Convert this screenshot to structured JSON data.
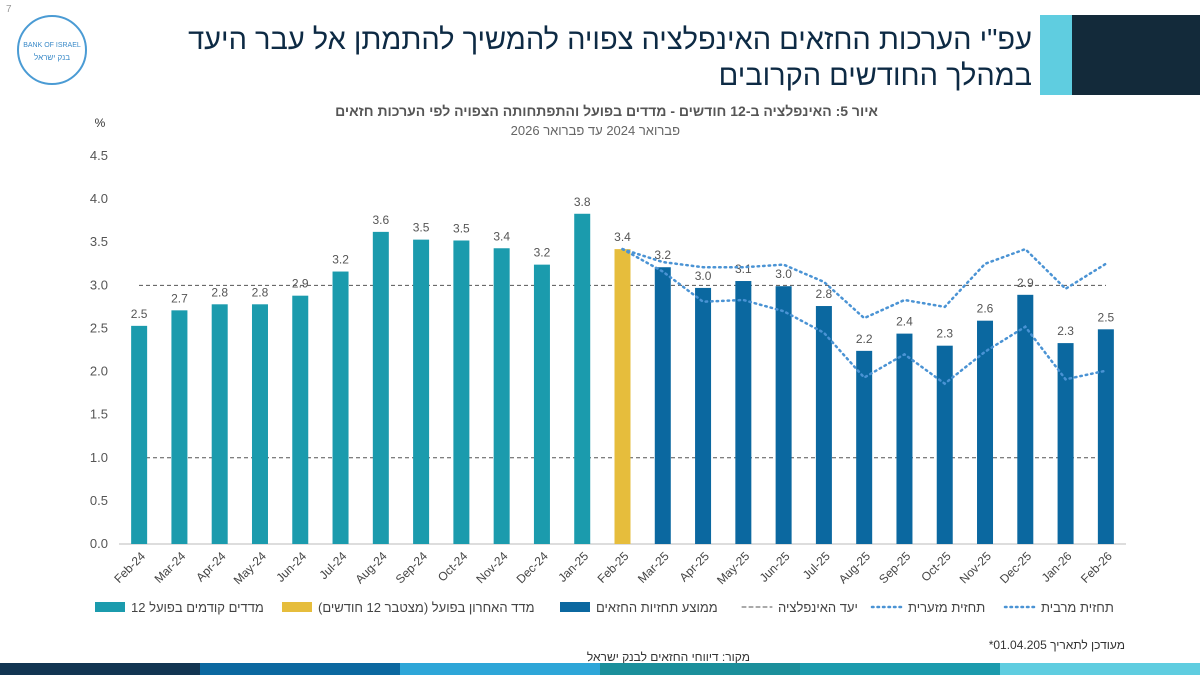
{
  "page_number": "7",
  "logo": {
    "en": "BANK OF ISRAEL",
    "he": "בנק ישראל"
  },
  "slide_title": "עפ\"י הערכות החזאים האינפלציה צפויה להמשיך להתמתן אל עבר היעד במהלך החודשים הקרובים",
  "chart_data": {
    "type": "bar",
    "title": "איור 5: האינפלציה ב-12 חודשים - מדדים בפועל והתפתחותה הצפויה לפי הערכות חזאים",
    "subtitle": "פברואר 2024 עד פברואר 2026",
    "y_label": "%",
    "categories": [
      "Feb-24",
      "Mar-24",
      "Apr-24",
      "May-24",
      "Jun-24",
      "Jul-24",
      "Aug-24",
      "Sep-24",
      "Oct-24",
      "Nov-24",
      "Dec-24",
      "Jan-25",
      "Feb-25",
      "Mar-25",
      "Apr-25",
      "May-25",
      "Jun-25",
      "Jul-25",
      "Aug-25",
      "Sep-25",
      "Oct-25",
      "Nov-25",
      "Dec-25",
      "Jan-26",
      "Feb-26"
    ],
    "ylim": [
      0,
      4.5
    ],
    "yticks": [
      {
        "value": 0,
        "label": "0.0"
      },
      0.5,
      {
        "value": 1,
        "label": "1.0"
      },
      1.5,
      {
        "value": 2,
        "label": "2.0"
      },
      2.5,
      {
        "value": 3,
        "label": "3.0"
      },
      3.5,
      {
        "value": 4,
        "label": "4.0"
      },
      4.5
    ],
    "series": [
      {
        "name": "12 מדדים קודמים בפועל",
        "type": "bar",
        "color": "#1b9bad",
        "values": [
          2.53,
          2.71,
          2.78,
          2.78,
          2.88,
          3.16,
          3.62,
          3.53,
          3.52,
          3.43,
          3.24,
          3.83,
          null,
          null,
          null,
          null,
          null,
          null,
          null,
          null,
          null,
          null,
          null,
          null,
          null
        ],
        "value_labels": [
          "2.5",
          "2.7",
          "2.8",
          "2.8",
          "2.9",
          "3.2",
          "3.6",
          "3.5",
          "3.5",
          "3.4",
          "3.2",
          "3.8",
          null,
          null,
          null,
          null,
          null,
          null,
          null,
          null,
          null,
          null,
          null,
          null,
          null
        ]
      },
      {
        "name": "מדד האחרון בפועל (מצטבר 12 חודשים)",
        "type": "bar",
        "color": "#e6bd3c",
        "values": [
          null,
          null,
          null,
          null,
          null,
          null,
          null,
          null,
          null,
          null,
          null,
          null,
          3.42,
          null,
          null,
          null,
          null,
          null,
          null,
          null,
          null,
          null,
          null,
          null,
          null
        ],
        "value_labels": [
          null,
          null,
          null,
          null,
          null,
          null,
          null,
          null,
          null,
          null,
          null,
          null,
          "3.4",
          null,
          null,
          null,
          null,
          null,
          null,
          null,
          null,
          null,
          null,
          null,
          null
        ]
      },
      {
        "name": "ממוצע תחזיות החזאים",
        "type": "bar",
        "color": "#0b68a0",
        "values": [
          null,
          null,
          null,
          null,
          null,
          null,
          null,
          null,
          null,
          null,
          null,
          null,
          null,
          3.21,
          2.97,
          3.05,
          2.99,
          2.76,
          2.24,
          2.44,
          2.3,
          2.59,
          2.89,
          2.33,
          2.49
        ],
        "value_labels": [
          null,
          null,
          null,
          null,
          null,
          null,
          null,
          null,
          null,
          null,
          null,
          null,
          null,
          "3.2",
          "3.0",
          "3.1",
          "3.0",
          "2.8",
          "2.2",
          "2.4",
          "2.3",
          "2.6",
          "2.9",
          "2.3",
          "2.5"
        ]
      },
      {
        "name": "תחזית מזערית",
        "type": "line",
        "color": "#4a93d4",
        "values": [
          null,
          null,
          null,
          null,
          null,
          null,
          null,
          null,
          null,
          null,
          null,
          null,
          3.42,
          3.16,
          2.81,
          2.83,
          2.7,
          2.45,
          1.93,
          2.2,
          1.86,
          2.23,
          2.52,
          1.91,
          2.01
        ]
      },
      {
        "name": "תחזית מרבית",
        "type": "line",
        "color": "#4a93d4",
        "values": [
          null,
          null,
          null,
          null,
          null,
          null,
          null,
          null,
          null,
          null,
          null,
          null,
          3.42,
          3.27,
          3.21,
          3.21,
          3.24,
          3.04,
          2.62,
          2.83,
          2.75,
          3.25,
          3.42,
          2.96,
          3.25
        ]
      }
    ],
    "target": {
      "name": "יעד האינפלציה",
      "color": "#555555",
      "values": [
        1,
        3
      ]
    }
  },
  "footnote": "*מעודכן לתאריך 01.04.205",
  "source": "מקור: דיווחי החזאים לבנק ישראל"
}
